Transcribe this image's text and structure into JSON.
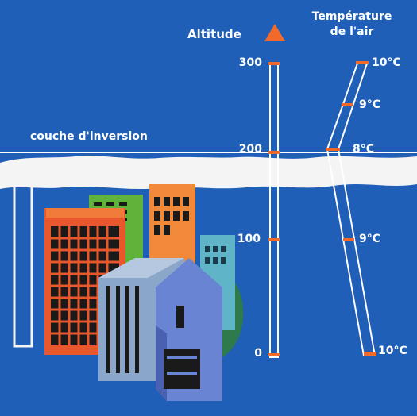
{
  "altitude": {
    "title": "Altitude",
    "ticks": [
      "300",
      "200",
      "100",
      "0"
    ]
  },
  "temperature": {
    "title_line1": "Température",
    "title_line2": "de l'air",
    "readings": [
      "10°C",
      "9°C",
      "8°C",
      "9°C",
      "10°C"
    ]
  },
  "inversion_label": "couche d'inversion",
  "colors": {
    "sky": "#1f5fb7",
    "accent": "#f26a2a",
    "smog": "#f4f4f4"
  }
}
